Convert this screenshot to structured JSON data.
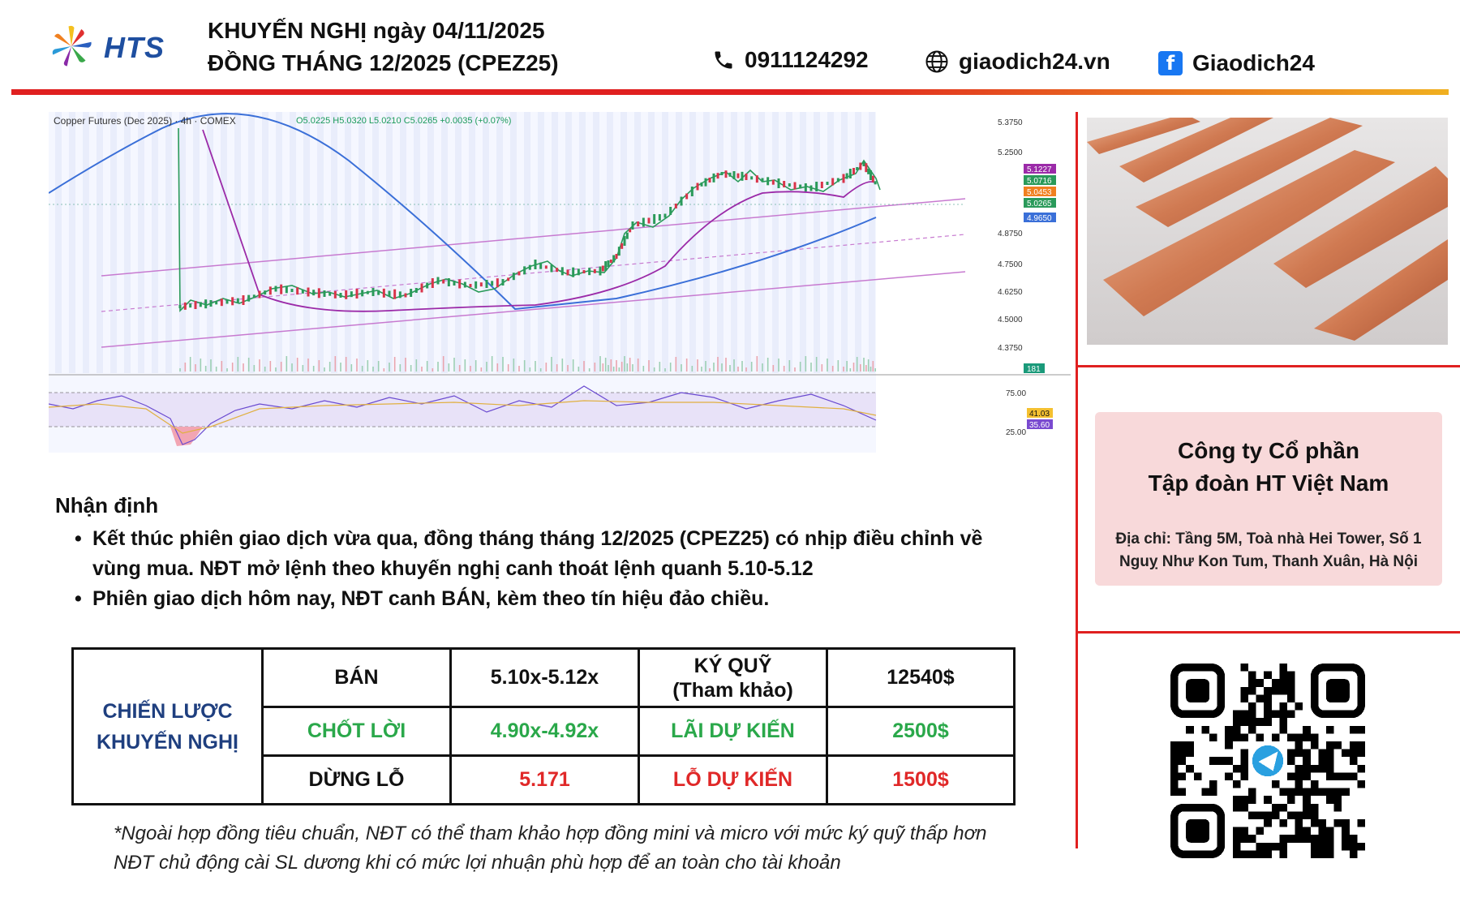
{
  "header": {
    "logo_text": "HTS",
    "title_line1": "KHUYẾN NGHỊ ngày 04/11/2025",
    "title_line2": "ĐỒNG THÁNG 12/2025 (CPEZ25)",
    "phone": "0911124292",
    "website": "giaodich24.vn",
    "facebook": "Giaodich24"
  },
  "chart_embed": {
    "title": "Copper Futures (Dec 2025) · 4h · COMEX",
    "ohlc": "O5.0225 H5.0320 L5.0210 C5.0265 +0.0035 (+0.07%)",
    "price_ticks": [
      "5.3750",
      "5.2500",
      "4.8750",
      "4.7500",
      "4.6250",
      "4.5000",
      "4.3750"
    ],
    "price_badges": [
      "5.1227",
      "5.0716",
      "5.0453",
      "5.0265",
      "4.9650"
    ],
    "volume_badge": "181",
    "rsi_ticks": [
      "75.00",
      "25.00"
    ],
    "rsi_badges": [
      "41.03",
      "35.60"
    ],
    "colors": {
      "ma_blue": "#3a6fd8",
      "ma_purple": "#9b2aa8",
      "channel": "#c77ad0",
      "up": "#2a9a5a",
      "down": "#d9344a"
    }
  },
  "analysis": {
    "heading": "Nhận định",
    "bullet1_line1": "Kết thúc phiên giao dịch vừa qua, đồng tháng tháng 12/2025 (CPEZ25) có nhịp điều chỉnh về",
    "bullet1_line2": "vùng mua. NĐT mở lệnh theo khuyến nghị canh thoát lệnh quanh 5.10-5.12",
    "bullet2": "Phiên giao dịch hôm nay, NĐT canh BÁN, kèm theo tín hiệu đảo chiều."
  },
  "table": {
    "strategy_line1": "CHIẾN LƯỢC",
    "strategy_line2": "KHUYẾN NGHỊ",
    "rows": [
      {
        "label": "BÁN",
        "value": "5.10x-5.12x",
        "label2_line1": "KÝ QUỸ",
        "label2_line2": "(Tham khảo)",
        "value2": "12540$"
      },
      {
        "label": "CHỐT LỜI",
        "value": "4.90x-4.92x",
        "label2": "LÃI DỰ KIẾN",
        "value2": "2500$"
      },
      {
        "label": "DỪNG LỖ",
        "value": "5.171",
        "label2": "LỖ DỰ KIẾN",
        "value2": "1500$"
      }
    ]
  },
  "footnote": {
    "line1": "*Ngoài hợp đồng tiêu chuẩn, NĐT có thể tham khảo hợp đồng mini và micro với mức ký quỹ thấp hơn",
    "line2": "NĐT chủ động cài SL dương khi có mức lợi nhuận phù hợp để an toàn cho tài khoản"
  },
  "company": {
    "name_line1": "Công ty Cổ phần",
    "name_line2": "Tập đoàn HT Việt Nam",
    "address_line1": "Địa chỉ: Tầng 5M, Toà nhà Hei Tower, Số 1",
    "address_line2": "Nguỵ Như Kon Tum, Thanh Xuân, Hà Nội"
  }
}
